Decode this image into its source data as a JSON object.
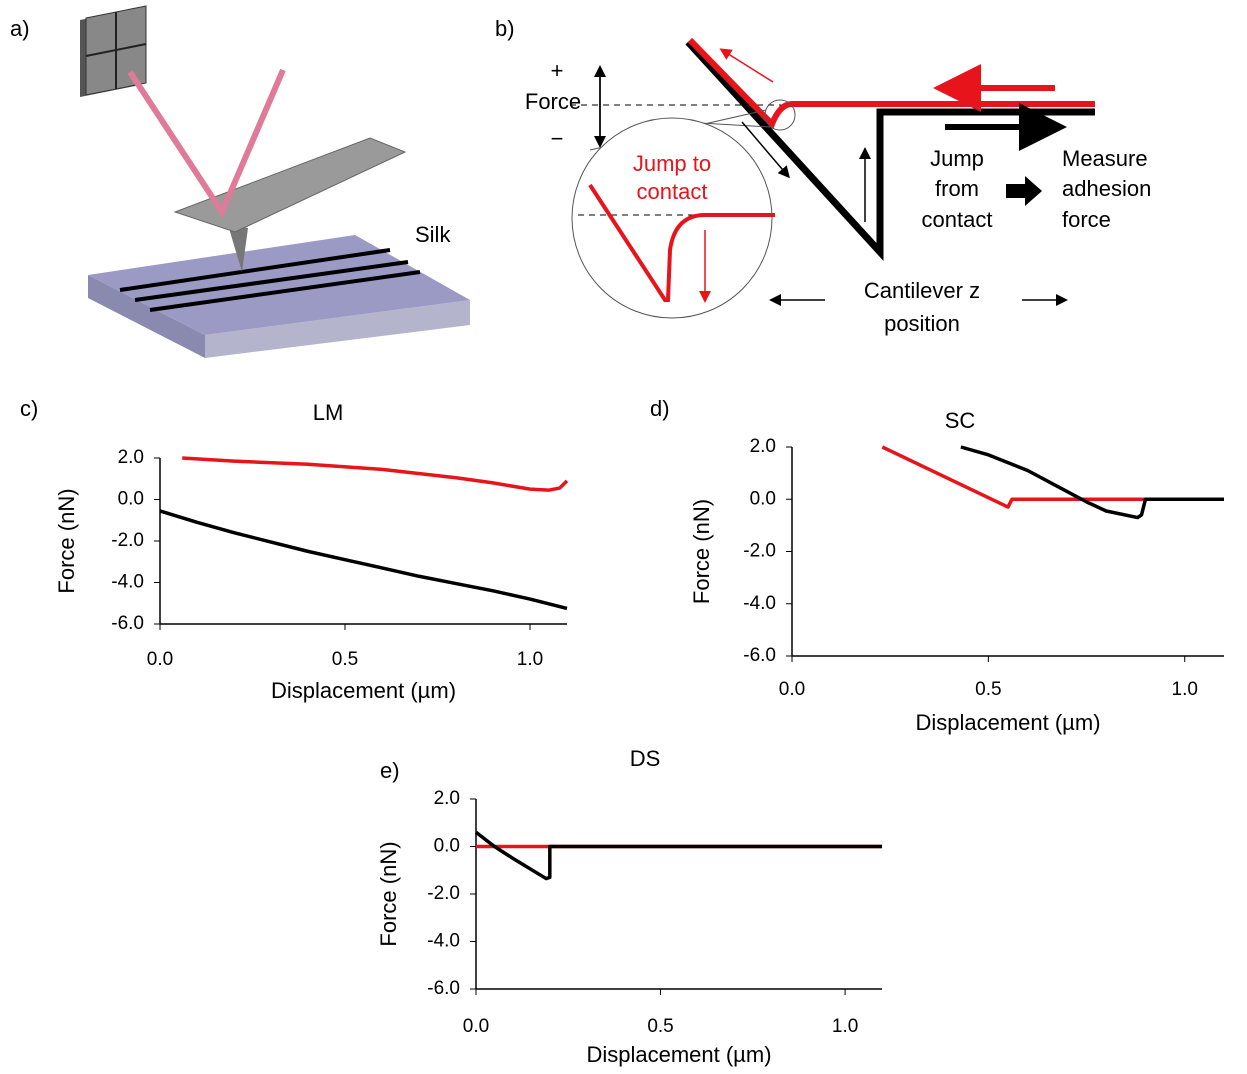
{
  "figure_a": {
    "panel": "a)",
    "label": "Silk"
  },
  "figure_b": {
    "panel": "b)",
    "axis_label": "Force",
    "plus": "+",
    "minus": "−",
    "jump_to_contact": [
      "Jump to",
      "contact"
    ],
    "jump_from_contact": [
      "Jump",
      "from",
      "contact"
    ],
    "measure": [
      "Measure",
      "adhesion",
      "force"
    ],
    "z_position": [
      "Cantilever z",
      "position"
    ]
  },
  "chart_data": [
    {
      "type": "line",
      "panel": "c)",
      "title": "LM",
      "x_label": "Displacement (µm)",
      "y_label": "Force (nN)",
      "xlim": [
        0,
        1.1
      ],
      "ylim": [
        -6,
        2
      ],
      "xticks": [
        {
          "value": 0,
          "label": "0.0"
        },
        0.5,
        {
          "value": 1,
          "label": "1.0"
        }
      ],
      "yticks": [
        {
          "value": 2,
          "label": "2.0"
        },
        {
          "value": 0,
          "label": "0.0"
        },
        {
          "value": -2,
          "label": "-2.0"
        },
        {
          "value": -4,
          "label": "-4.0"
        },
        {
          "value": -6,
          "label": "-6.0"
        }
      ],
      "series": [
        {
          "color": "#e8141b",
          "x": [
            0.06,
            0.2,
            0.4,
            0.6,
            0.8,
            0.9,
            1.0,
            1.05,
            1.08,
            1.1
          ],
          "values": [
            2.0,
            1.85,
            1.7,
            1.45,
            1.05,
            0.8,
            0.5,
            0.45,
            0.55,
            0.9
          ]
        },
        {
          "color": "#000000",
          "x": [
            0,
            0.1,
            0.2,
            0.3,
            0.4,
            0.5,
            0.6,
            0.7,
            0.8,
            0.9,
            1.0,
            1.1
          ],
          "values": [
            -0.55,
            -1.1,
            -1.6,
            -2.05,
            -2.5,
            -2.9,
            -3.3,
            -3.7,
            -4.05,
            -4.4,
            -4.8,
            -5.25
          ]
        }
      ]
    },
    {
      "type": "line",
      "panel": "d)",
      "title": "SC",
      "x_label": "Displacement (µm)",
      "y_label": "Force (nN)",
      "xlim": [
        0,
        1.1
      ],
      "ylim": [
        -6,
        2
      ],
      "xticks": [
        {
          "value": 0,
          "label": "0.0"
        },
        0.5,
        {
          "value": 1,
          "label": "1.0"
        }
      ],
      "yticks": [
        {
          "value": 2,
          "label": "2.0"
        },
        {
          "value": 0,
          "label": "0.0"
        },
        {
          "value": -2,
          "label": "-2.0"
        },
        {
          "value": -4,
          "label": "-4.0"
        },
        {
          "value": -6,
          "label": "-6.0"
        }
      ],
      "series": [
        {
          "color": "#e8141b",
          "x": [
            0.23,
            0.55,
            0.56,
            0.9
          ],
          "values": [
            2.0,
            -0.3,
            0,
            0
          ]
        },
        {
          "color": "#000000",
          "x": [
            0.43,
            0.5,
            0.6,
            0.7,
            0.75,
            0.8,
            0.88,
            0.89,
            0.9,
            1.1
          ],
          "values": [
            2.0,
            1.7,
            1.1,
            0.3,
            -0.1,
            -0.45,
            -0.7,
            -0.6,
            0,
            0
          ]
        }
      ]
    },
    {
      "type": "line",
      "panel": "e)",
      "title": "DS",
      "x_label": "Displacement (µm)",
      "y_label": "Force (nN)",
      "xlim": [
        0,
        1.1
      ],
      "ylim": [
        -6,
        2
      ],
      "xticks": [
        {
          "value": 0,
          "label": "0.0"
        },
        0.5,
        {
          "value": 1,
          "label": "1.0"
        }
      ],
      "yticks": [
        {
          "value": 2,
          "label": "2.0"
        },
        {
          "value": 0,
          "label": "0.0"
        },
        {
          "value": -2,
          "label": "-2.0"
        },
        {
          "value": -4,
          "label": "-4.0"
        },
        {
          "value": -6,
          "label": "-6.0"
        }
      ],
      "series": [
        {
          "color": "#e8141b",
          "x": [
            0,
            1.1
          ],
          "values": [
            0,
            0
          ]
        },
        {
          "color": "#000000",
          "x": [
            0,
            0.05,
            0.1,
            0.19,
            0.2,
            0.2,
            1.1
          ],
          "values": [
            0.6,
            0,
            -0.5,
            -1.35,
            -1.3,
            0,
            0
          ]
        }
      ]
    }
  ]
}
